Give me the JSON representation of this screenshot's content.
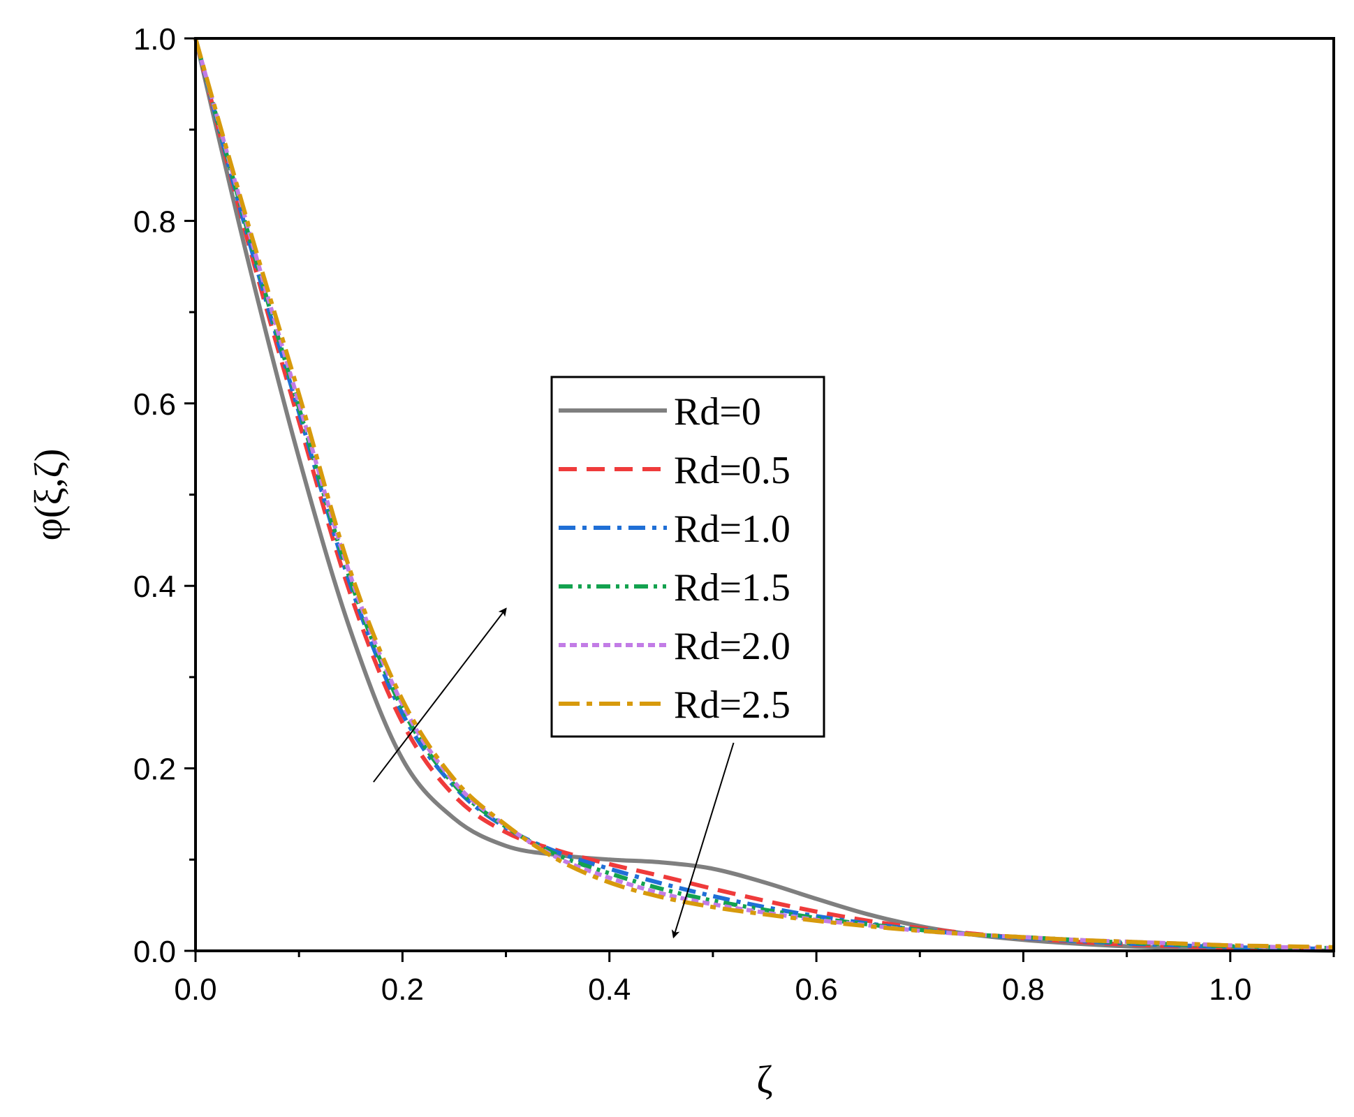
{
  "chart_data": {
    "type": "line",
    "xlabel": "ζ",
    "ylabel": "φ(ξ,ζ)",
    "xlim": [
      0.0,
      1.1
    ],
    "ylim": [
      0.0,
      1.0
    ],
    "x_ticks": [
      "0.0",
      "0.2",
      "0.4",
      "0.6",
      "0.8",
      "1.0"
    ],
    "x_tick_values": [
      0.0,
      0.2,
      0.4,
      0.6,
      0.8,
      1.0
    ],
    "y_ticks": [
      "0.0",
      "0.2",
      "0.4",
      "0.6",
      "0.8",
      "1.0"
    ],
    "y_tick_values": [
      0.0,
      0.2,
      0.4,
      0.6,
      0.8,
      1.0
    ],
    "grid": false,
    "legend_position": "center-right",
    "series": [
      {
        "name": "Rd=0",
        "color": "#7f7f7f",
        "dash": "solid",
        "x": [
          0,
          0.05,
          0.1,
          0.15,
          0.2,
          0.25,
          0.3,
          0.35,
          0.4,
          0.45,
          0.5,
          0.55,
          0.6,
          0.65,
          0.7,
          0.75,
          0.8,
          0.85,
          0.9,
          0.95,
          1.0,
          1.05,
          1.1
        ],
        "y": [
          1.0,
          0.76,
          0.54,
          0.35,
          0.21,
          0.145,
          0.115,
          0.105,
          0.1,
          0.097,
          0.09,
          0.075,
          0.057,
          0.04,
          0.027,
          0.018,
          0.012,
          0.008,
          0.005,
          0.003,
          0.002,
          0.001,
          0.0
        ]
      },
      {
        "name": "Rd=0.5",
        "color": "#ef3b3b",
        "dash": "dashed",
        "x": [
          0,
          0.05,
          0.1,
          0.15,
          0.2,
          0.25,
          0.3,
          0.35,
          0.4,
          0.45,
          0.5,
          0.55,
          0.6,
          0.65,
          0.7,
          0.75,
          0.8,
          0.85,
          0.9,
          0.95,
          1.0,
          1.05,
          1.1
        ],
        "y": [
          1.0,
          0.78,
          0.58,
          0.39,
          0.25,
          0.17,
          0.13,
          0.11,
          0.095,
          0.082,
          0.068,
          0.055,
          0.043,
          0.033,
          0.025,
          0.019,
          0.014,
          0.01,
          0.007,
          0.005,
          0.003,
          0.002,
          0.001
        ]
      },
      {
        "name": "Rd=1.0",
        "color": "#1f6fd6",
        "dash": "dashdot",
        "x": [
          0,
          0.05,
          0.1,
          0.15,
          0.2,
          0.25,
          0.3,
          0.35,
          0.4,
          0.45,
          0.5,
          0.55,
          0.6,
          0.65,
          0.7,
          0.75,
          0.8,
          0.85,
          0.9,
          0.95,
          1.0,
          1.05,
          1.1
        ],
        "y": [
          1.0,
          0.785,
          0.59,
          0.4,
          0.26,
          0.18,
          0.135,
          0.108,
          0.09,
          0.074,
          0.06,
          0.048,
          0.038,
          0.03,
          0.023,
          0.018,
          0.014,
          0.011,
          0.008,
          0.006,
          0.004,
          0.003,
          0.002
        ]
      },
      {
        "name": "Rd=1.5",
        "color": "#13a24f",
        "dash": "dashdotdot",
        "x": [
          0,
          0.05,
          0.1,
          0.15,
          0.2,
          0.25,
          0.3,
          0.35,
          0.4,
          0.45,
          0.5,
          0.55,
          0.6,
          0.65,
          0.7,
          0.75,
          0.8,
          0.85,
          0.9,
          0.95,
          1.0,
          1.05,
          1.1
        ],
        "y": [
          1.0,
          0.79,
          0.595,
          0.405,
          0.265,
          0.182,
          0.136,
          0.105,
          0.085,
          0.068,
          0.055,
          0.045,
          0.036,
          0.029,
          0.023,
          0.018,
          0.015,
          0.012,
          0.009,
          0.007,
          0.005,
          0.004,
          0.003
        ]
      },
      {
        "name": "Rd=2.0",
        "color": "#c27ce6",
        "dash": "shortdash",
        "x": [
          0,
          0.05,
          0.1,
          0.15,
          0.2,
          0.25,
          0.3,
          0.35,
          0.4,
          0.45,
          0.5,
          0.55,
          0.6,
          0.65,
          0.7,
          0.75,
          0.8,
          0.85,
          0.9,
          0.95,
          1.0,
          1.05,
          1.1
        ],
        "y": [
          1.0,
          0.795,
          0.6,
          0.41,
          0.27,
          0.185,
          0.137,
          0.102,
          0.08,
          0.063,
          0.051,
          0.042,
          0.034,
          0.028,
          0.022,
          0.018,
          0.015,
          0.012,
          0.01,
          0.008,
          0.006,
          0.004,
          0.003
        ]
      },
      {
        "name": "Rd=2.5",
        "color": "#d79a0c",
        "dash": "dashdot-long",
        "x": [
          0,
          0.05,
          0.1,
          0.15,
          0.2,
          0.25,
          0.3,
          0.35,
          0.4,
          0.45,
          0.5,
          0.55,
          0.6,
          0.65,
          0.7,
          0.75,
          0.8,
          0.85,
          0.9,
          0.95,
          1.0,
          1.05,
          1.1
        ],
        "y": [
          1.0,
          0.8,
          0.61,
          0.415,
          0.275,
          0.188,
          0.138,
          0.1,
          0.075,
          0.059,
          0.048,
          0.04,
          0.033,
          0.027,
          0.022,
          0.018,
          0.015,
          0.012,
          0.01,
          0.008,
          0.006,
          0.005,
          0.004
        ]
      }
    ],
    "annotations": [
      {
        "type": "arrow",
        "direction": "increasing",
        "from": [
          0.172,
          0.185
        ],
        "to": [
          0.3,
          0.375
        ]
      },
      {
        "type": "arrow",
        "direction": "decreasing",
        "from": [
          0.52,
          0.228
        ],
        "to": [
          0.462,
          0.015
        ]
      }
    ]
  }
}
